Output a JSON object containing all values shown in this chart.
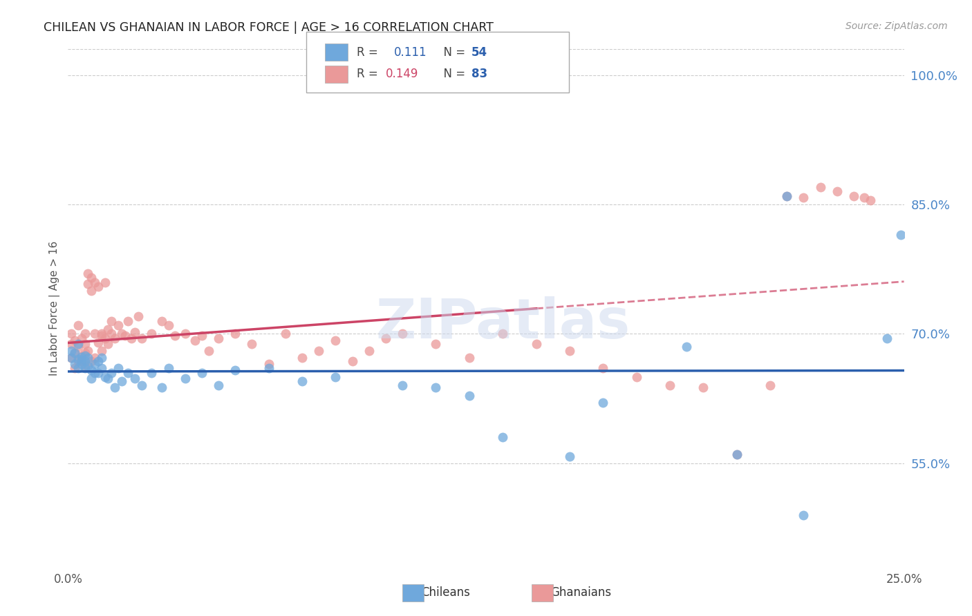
{
  "title": "CHILEAN VS GHANAIAN IN LABOR FORCE | AGE > 16 CORRELATION CHART",
  "source": "Source: ZipAtlas.com",
  "ylabel": "In Labor Force | Age > 16",
  "xlim": [
    0.0,
    0.25
  ],
  "ylim": [
    0.43,
    1.03
  ],
  "yticks": [
    0.55,
    0.7,
    0.85,
    1.0
  ],
  "ytick_labels": [
    "55.0%",
    "70.0%",
    "85.0%",
    "100.0%"
  ],
  "xticks": [
    0.0,
    0.05,
    0.1,
    0.15,
    0.2,
    0.25
  ],
  "xtick_labels": [
    "0.0%",
    "",
    "",
    "",
    "",
    "25.0%"
  ],
  "legend_r_blue": "0.111",
  "legend_n_blue": "54",
  "legend_r_pink": "0.149",
  "legend_n_pink": "83",
  "blue_color": "#6fa8dc",
  "pink_color": "#ea9999",
  "blue_line_color": "#2b5fad",
  "pink_line_color": "#cc4466",
  "watermark": "ZIPatlas",
  "background_color": "#ffffff",
  "grid_color": "#cccccc",
  "title_color": "#222222",
  "right_tick_color": "#4a86c8",
  "blue_x": [
    0.001,
    0.001,
    0.002,
    0.002,
    0.003,
    0.003,
    0.003,
    0.004,
    0.004,
    0.004,
    0.005,
    0.005,
    0.005,
    0.006,
    0.006,
    0.007,
    0.007,
    0.008,
    0.008,
    0.009,
    0.009,
    0.01,
    0.01,
    0.011,
    0.012,
    0.013,
    0.014,
    0.015,
    0.016,
    0.018,
    0.02,
    0.022,
    0.025,
    0.028,
    0.03,
    0.035,
    0.04,
    0.045,
    0.05,
    0.06,
    0.07,
    0.08,
    0.1,
    0.11,
    0.12,
    0.13,
    0.15,
    0.16,
    0.185,
    0.2,
    0.215,
    0.22,
    0.245,
    0.249
  ],
  "blue_y": [
    0.672,
    0.68,
    0.665,
    0.678,
    0.688,
    0.671,
    0.66,
    0.673,
    0.665,
    0.67,
    0.675,
    0.66,
    0.668,
    0.672,
    0.663,
    0.658,
    0.648,
    0.665,
    0.655,
    0.668,
    0.655,
    0.66,
    0.672,
    0.65,
    0.648,
    0.655,
    0.638,
    0.66,
    0.645,
    0.655,
    0.648,
    0.64,
    0.655,
    0.638,
    0.66,
    0.648,
    0.655,
    0.64,
    0.658,
    0.66,
    0.645,
    0.65,
    0.64,
    0.638,
    0.628,
    0.58,
    0.558,
    0.62,
    0.685,
    0.56,
    0.86,
    0.49,
    0.695,
    0.815
  ],
  "pink_x": [
    0.001,
    0.001,
    0.001,
    0.002,
    0.002,
    0.002,
    0.003,
    0.003,
    0.003,
    0.004,
    0.004,
    0.004,
    0.005,
    0.005,
    0.005,
    0.005,
    0.006,
    0.006,
    0.006,
    0.007,
    0.007,
    0.007,
    0.008,
    0.008,
    0.008,
    0.009,
    0.009,
    0.01,
    0.01,
    0.01,
    0.011,
    0.011,
    0.012,
    0.012,
    0.013,
    0.013,
    0.014,
    0.015,
    0.016,
    0.017,
    0.018,
    0.019,
    0.02,
    0.021,
    0.022,
    0.025,
    0.028,
    0.03,
    0.032,
    0.035,
    0.038,
    0.04,
    0.042,
    0.045,
    0.05,
    0.055,
    0.06,
    0.065,
    0.07,
    0.075,
    0.08,
    0.085,
    0.09,
    0.095,
    0.1,
    0.11,
    0.12,
    0.13,
    0.14,
    0.15,
    0.16,
    0.17,
    0.18,
    0.19,
    0.2,
    0.21,
    0.215,
    0.22,
    0.225,
    0.23,
    0.235,
    0.238,
    0.24
  ],
  "pink_y": [
    0.688,
    0.672,
    0.7,
    0.66,
    0.678,
    0.692,
    0.685,
    0.668,
    0.71,
    0.675,
    0.695,
    0.668,
    0.7,
    0.678,
    0.688,
    0.662,
    0.758,
    0.77,
    0.68,
    0.765,
    0.75,
    0.668,
    0.76,
    0.7,
    0.672,
    0.69,
    0.755,
    0.698,
    0.7,
    0.68,
    0.695,
    0.76,
    0.705,
    0.688,
    0.7,
    0.715,
    0.695,
    0.71,
    0.7,
    0.698,
    0.715,
    0.695,
    0.702,
    0.72,
    0.695,
    0.7,
    0.715,
    0.71,
    0.698,
    0.7,
    0.692,
    0.698,
    0.68,
    0.695,
    0.7,
    0.688,
    0.665,
    0.7,
    0.672,
    0.68,
    0.692,
    0.668,
    0.68,
    0.695,
    0.7,
    0.688,
    0.672,
    0.7,
    0.688,
    0.68,
    0.66,
    0.65,
    0.64,
    0.638,
    0.56,
    0.64,
    0.86,
    0.858,
    0.87,
    0.865,
    0.86,
    0.858,
    0.855
  ]
}
